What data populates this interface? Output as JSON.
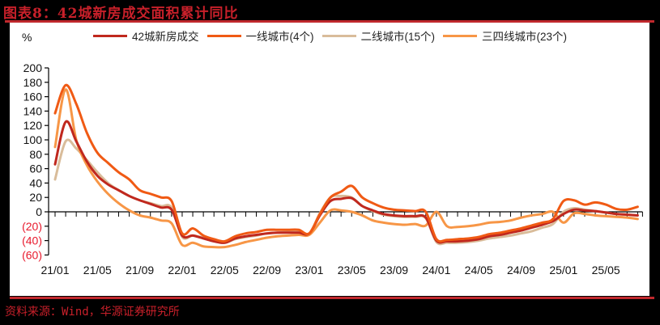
{
  "title": "图表8：42城新房成交面积累计同比",
  "source": "资料来源：Wind，华源证券研究所",
  "unit": "%",
  "colors": {
    "accent_red": "#c0282d",
    "series_42": "#c0281e",
    "series_t1": "#f05a14",
    "series_t2": "#d9bc9a",
    "series_t34": "#f79646",
    "neg_label": "#e8192c"
  },
  "legend": [
    {
      "label": "42城新房成交",
      "color": "#c0281e"
    },
    {
      "label": "一线城市(4个)",
      "color": "#f05a14"
    },
    {
      "label": "二线城市(15个)",
      "color": "#d9bc9a"
    },
    {
      "label": "三四线城市(23个)",
      "color": "#f79646"
    }
  ],
  "chart_data": {
    "type": "line",
    "title": "42城新房成交面积累计同比",
    "xlabel": "",
    "ylabel": "%",
    "ylim": [
      -60,
      200
    ],
    "yticks": [
      200,
      180,
      160,
      140,
      120,
      100,
      80,
      60,
      40,
      20,
      0,
      -20,
      -40,
      -60
    ],
    "ytick_labels": [
      "200",
      "180",
      "160",
      "140",
      "120",
      "100",
      "80",
      "60",
      "40",
      "20",
      "0",
      "(20)",
      "(40)",
      "(60)"
    ],
    "xtick_labels": [
      "21/01",
      "21/05",
      "21/09",
      "22/01",
      "22/05",
      "22/09",
      "23/01",
      "23/05",
      "23/09",
      "24/01",
      "24/05",
      "24/09",
      "25/01",
      "25/05"
    ],
    "grid": false,
    "legend_position": "top",
    "x": [
      "21/01",
      "21/02",
      "21/03",
      "21/04",
      "21/05",
      "21/06",
      "21/07",
      "21/08",
      "21/09",
      "21/10",
      "21/11",
      "21/12",
      "22/01",
      "22/02",
      "22/03",
      "22/04",
      "22/05",
      "22/06",
      "22/07",
      "22/08",
      "22/09",
      "22/10",
      "22/11",
      "22/12",
      "23/01",
      "23/02",
      "23/03",
      "23/04",
      "23/05",
      "23/06",
      "23/07",
      "23/08",
      "23/09",
      "23/10",
      "23/11",
      "23/12",
      "24/01",
      "24/02",
      "24/03",
      "24/04",
      "24/05",
      "24/06",
      "24/07",
      "24/08",
      "24/09",
      "24/10",
      "24/11",
      "24/12",
      "25/01",
      "25/02",
      "25/03",
      "25/04",
      "25/05",
      "25/06",
      "25/07",
      "25/08"
    ],
    "series": [
      {
        "name": "42城新房成交",
        "values": [
          66,
          125,
          98,
          70,
          50,
          38,
          30,
          22,
          16,
          11,
          6,
          3,
          -33,
          -33,
          -37,
          -41,
          -43,
          -37,
          -34,
          -32,
          -30,
          -29,
          -29,
          -29,
          -30,
          -5,
          15,
          18,
          19,
          8,
          2,
          -3,
          -5,
          -6,
          -6,
          -8,
          -40,
          -41,
          -41,
          -40,
          -38,
          -34,
          -32,
          -29,
          -26,
          -22,
          -18,
          -13,
          -3,
          3,
          2,
          1,
          -1,
          -3,
          -4,
          -5
        ]
      },
      {
        "name": "一线城市(4个)",
        "values": [
          137,
          176,
          150,
          110,
          82,
          68,
          55,
          45,
          30,
          25,
          20,
          15,
          -30,
          -23,
          -33,
          -38,
          -41,
          -34,
          -30,
          -28,
          -25,
          -25,
          -25,
          -25,
          -30,
          -3,
          20,
          28,
          36,
          20,
          12,
          6,
          3,
          2,
          1,
          0,
          -38,
          -39,
          -38,
          -37,
          -35,
          -31,
          -29,
          -26,
          -23,
          -19,
          -15,
          -10,
          15,
          16,
          10,
          13,
          10,
          4,
          3,
          7
        ]
      },
      {
        "name": "二线城市(15个)",
        "values": [
          45,
          98,
          88,
          72,
          55,
          40,
          30,
          22,
          16,
          12,
          8,
          6,
          -35,
          -33,
          -36,
          -40,
          -43,
          -38,
          -35,
          -33,
          -30,
          -29,
          -28,
          -28,
          -30,
          -2,
          20,
          22,
          20,
          8,
          1,
          -4,
          -6,
          -7,
          -7,
          -9,
          -42,
          -43,
          -43,
          -42,
          -40,
          -37,
          -35,
          -33,
          -30,
          -27,
          -22,
          -17,
          0,
          5,
          3,
          1,
          -1,
          -3,
          -4,
          -5
        ]
      },
      {
        "name": "三四线城市(23个)",
        "values": [
          90,
          170,
          100,
          65,
          42,
          25,
          12,
          2,
          -5,
          -8,
          -12,
          -16,
          -46,
          -43,
          -48,
          -49,
          -49,
          -46,
          -42,
          -39,
          -36,
          -34,
          -33,
          -32,
          -32,
          -15,
          2,
          2,
          0,
          -5,
          -12,
          -15,
          -17,
          -18,
          -17,
          -19,
          0,
          -20,
          -21,
          -20,
          -18,
          -15,
          -14,
          -12,
          -8,
          -5,
          -3,
          0,
          -15,
          -2,
          -3,
          -5,
          -6,
          -7,
          -8,
          -10
        ]
      }
    ]
  }
}
